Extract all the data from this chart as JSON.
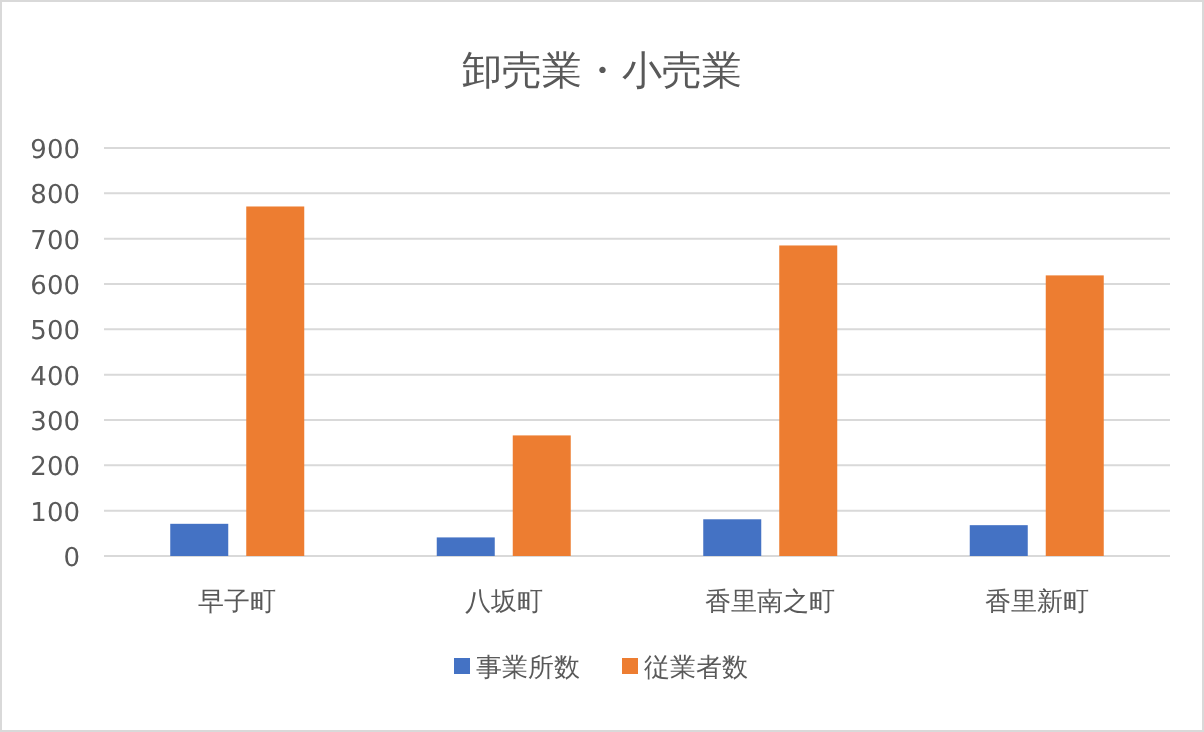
{
  "chart_data": {
    "type": "bar",
    "title": "卸売業・小売業",
    "categories": [
      "早子町",
      "八坂町",
      "香里南之町",
      "香里新町"
    ],
    "series": [
      {
        "name": "事業所数",
        "color": "#4472c4",
        "values": [
          71,
          41,
          81,
          68
        ]
      },
      {
        "name": "従業者数",
        "color": "#ed7d31",
        "values": [
          771,
          266,
          685,
          619
        ]
      }
    ],
    "ylim": [
      0,
      900
    ],
    "yticks": [
      0,
      100,
      200,
      300,
      400,
      500,
      600,
      700,
      800,
      900
    ],
    "grid": "y",
    "legend": "bottom"
  }
}
